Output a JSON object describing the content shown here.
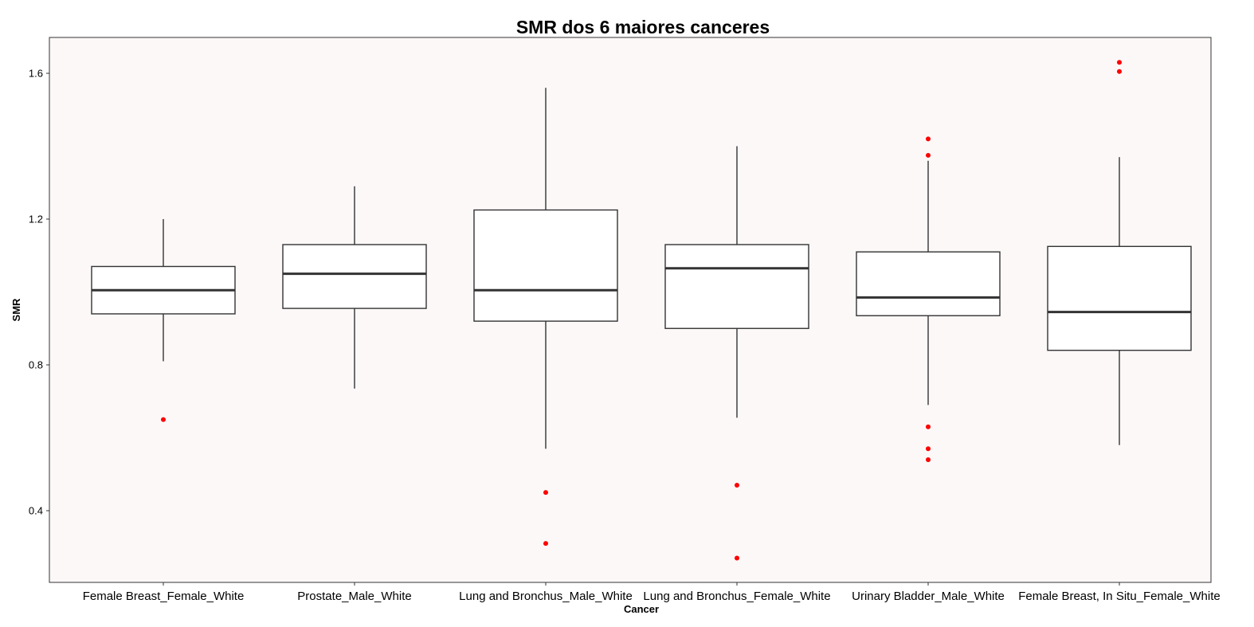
{
  "chart_data": {
    "type": "boxplot",
    "title": "SMR dos 6 maiores canceres",
    "xlabel": "Cancer",
    "ylabel": "SMR",
    "ylim": [
      0.2,
      1.7
    ],
    "yticks": [
      0.4,
      0.8,
      1.2,
      1.6
    ],
    "grid": false,
    "legend": "none",
    "categories": [
      "Female Breast_Female_White",
      "Prostate_Male_White",
      "Lung and Bronchus_Male_White",
      "Lung and Bronchus_Female_White",
      "Urinary Bladder_Male_White",
      "Female Breast, In Situ_Female_White"
    ],
    "boxes": [
      {
        "whisker_low": 0.81,
        "q1": 0.94,
        "median": 1.005,
        "q3": 1.07,
        "whisker_high": 1.2,
        "outliers": [
          0.65
        ]
      },
      {
        "whisker_low": 0.735,
        "q1": 0.955,
        "median": 1.05,
        "q3": 1.13,
        "whisker_high": 1.29,
        "outliers": []
      },
      {
        "whisker_low": 0.57,
        "q1": 0.92,
        "median": 1.005,
        "q3": 1.225,
        "whisker_high": 1.56,
        "outliers": [
          0.45,
          0.31
        ]
      },
      {
        "whisker_low": 0.655,
        "q1": 0.9,
        "median": 1.065,
        "q3": 1.13,
        "whisker_high": 1.4,
        "outliers": [
          0.47,
          0.27
        ]
      },
      {
        "whisker_low": 0.69,
        "q1": 0.935,
        "median": 0.985,
        "q3": 1.11,
        "whisker_high": 1.36,
        "outliers": [
          1.42,
          1.375,
          0.63,
          0.57,
          0.54
        ]
      },
      {
        "whisker_low": 0.58,
        "q1": 0.84,
        "median": 0.945,
        "q3": 1.125,
        "whisker_high": 1.37,
        "outliers": [
          1.63,
          1.605
        ]
      }
    ],
    "colors": {
      "panel_background": "#fcf8f8",
      "box_fill": "#ffffff",
      "box_line": "#333333",
      "outlier": "#ff0000"
    }
  }
}
